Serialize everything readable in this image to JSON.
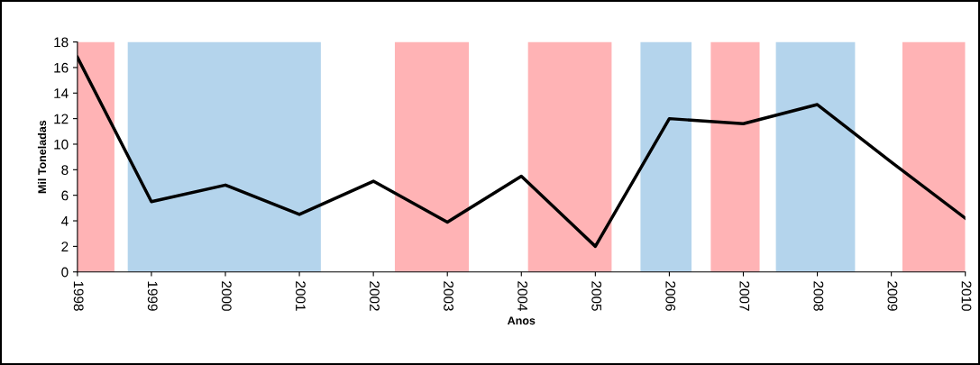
{
  "chart_data": {
    "type": "line",
    "xlabel": "Anos",
    "ylabel": "Mil Toneladas",
    "x": [
      1998,
      1999,
      2000,
      2001,
      2002,
      2003,
      2004,
      2005,
      2006,
      2007,
      2008,
      2009,
      2010
    ],
    "series": [
      {
        "color": "#000000",
        "values": [
          16.8,
          5.5,
          6.8,
          4.5,
          7.1,
          3.9,
          7.5,
          2.0,
          12.0,
          11.6,
          13.1,
          8.6,
          4.2
        ]
      }
    ],
    "bands": [
      {
        "axis": "x",
        "from": 1998,
        "to": 1998.5,
        "color": "#ffb3b5"
      },
      {
        "axis": "x",
        "from": 1998.68,
        "to": 2001.29,
        "color": "#b4d4ec"
      },
      {
        "axis": "x",
        "from": 2002.29,
        "to": 2003.29,
        "color": "#ffb3b5"
      },
      {
        "axis": "x",
        "from": 2004.09,
        "to": 2005.22,
        "color": "#ffb3b5"
      },
      {
        "axis": "x",
        "from": 2005.61,
        "to": 2006.3,
        "color": "#b4d4ec"
      },
      {
        "axis": "x",
        "from": 2006.56,
        "to": 2007.22,
        "color": "#ffb3b5"
      },
      {
        "axis": "x",
        "from": 2007.44,
        "to": 2008.51,
        "color": "#b4d4ec"
      },
      {
        "axis": "x",
        "from": 2009.15,
        "to": 2010,
        "color": "#ffb3b5"
      }
    ],
    "xlim": [
      1998,
      2010
    ],
    "xticks": [
      1998,
      1999,
      2000,
      2001,
      2002,
      2003,
      2004,
      2005,
      2006,
      2007,
      2008,
      2009,
      2010
    ],
    "ylim": [
      0,
      18
    ],
    "yticks": [
      0,
      2,
      4,
      6,
      8,
      10,
      12,
      14,
      16,
      18
    ],
    "grid": false,
    "legend": false,
    "marker": "none",
    "line_style": "solid"
  }
}
